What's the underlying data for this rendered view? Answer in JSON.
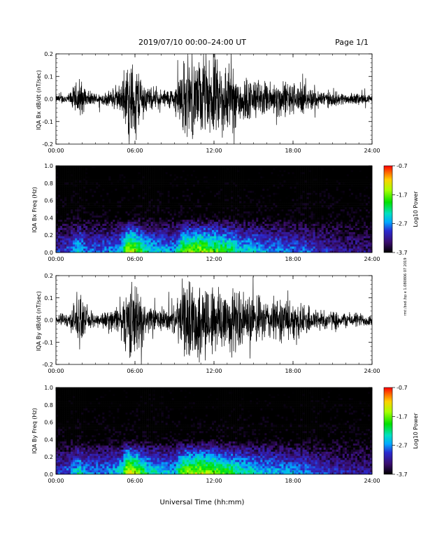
{
  "header": {
    "title": "2019/07/10  00:00–24:00 UT",
    "page": "Page 1/1"
  },
  "side_note": "rmt /bsd /bp e 1.080806 07 2019",
  "x_label": "Universal Time (hh:mm)",
  "colors": {
    "waveform": "#000000",
    "colorbar": [
      "#000000",
      "#3a0d6e",
      "#2a2ad0",
      "#00a8ff",
      "#00e0c0",
      "#00e000",
      "#a8ff00",
      "#ffd000",
      "#ff6000",
      "#ff0000"
    ]
  },
  "chart_data": [
    {
      "type": "line",
      "ylabel": "IQA Bx dB/dt (nT/sec)",
      "xlim": [
        "00:00",
        "24:00"
      ],
      "ylim": [
        -0.2,
        0.2
      ],
      "x_ticks": [
        "00:00",
        "06:00",
        "12:00",
        "18:00",
        "24:00"
      ],
      "y_ticks": [
        "-0.2",
        "-0.1",
        "0.0",
        "0.1",
        "0.2"
      ],
      "envelope": {
        "hours": [
          0,
          1,
          1.8,
          2.2,
          3,
          4,
          5,
          5.4,
          6,
          7,
          8,
          9,
          9.6,
          10,
          11,
          12,
          13,
          14,
          15,
          16,
          17,
          18,
          19,
          20,
          21,
          22,
          23,
          24
        ],
        "amplitude": [
          0.02,
          0.03,
          0.12,
          0.05,
          0.03,
          0.04,
          0.08,
          0.2,
          0.2,
          0.06,
          0.05,
          0.06,
          0.2,
          0.2,
          0.2,
          0.2,
          0.2,
          0.13,
          0.11,
          0.09,
          0.1,
          0.09,
          0.07,
          0.05,
          0.04,
          0.03,
          0.03,
          0.02
        ]
      }
    },
    {
      "type": "heatmap",
      "ylabel": "IQA Bx Freq (Hz)",
      "xlim": [
        "00:00",
        "24:00"
      ],
      "ylim": [
        0.0,
        1.0
      ],
      "x_ticks": [
        "00:00",
        "06:00",
        "12:00",
        "18:00",
        "24:00"
      ],
      "y_ticks": [
        "0.0",
        "0.2",
        "0.4",
        "0.6",
        "0.8",
        "1.0"
      ],
      "colorbar": {
        "label": "Log10 Power",
        "ticks": [
          "-0.7",
          "-1.7",
          "-2.7",
          "-3.7"
        ],
        "range": [
          -3.7,
          -0.7
        ]
      },
      "power_by_hour": {
        "hours": [
          0,
          1,
          1.8,
          2.2,
          3,
          4,
          5,
          5.4,
          6,
          7,
          8,
          9,
          9.6,
          10,
          11,
          12,
          13,
          14,
          15,
          16,
          17,
          18,
          19,
          20,
          21,
          22,
          23,
          24
        ],
        "low_freq_power": [
          -3.0,
          -2.9,
          -2.3,
          -2.7,
          -2.8,
          -2.7,
          -2.4,
          -1.2,
          -1.5,
          -2.3,
          -2.5,
          -2.6,
          -1.7,
          -1.6,
          -1.5,
          -1.7,
          -1.9,
          -2.3,
          -2.4,
          -2.6,
          -2.6,
          -2.7,
          -2.8,
          -3.0,
          -3.1,
          -3.2,
          -3.2,
          -3.3
        ]
      }
    },
    {
      "type": "line",
      "ylabel": "IQA By dB/dt (nT/sec)",
      "xlim": [
        "00:00",
        "24:00"
      ],
      "ylim": [
        -0.2,
        0.2
      ],
      "x_ticks": [
        "00:00",
        "06:00",
        "12:00",
        "18:00",
        "24:00"
      ],
      "y_ticks": [
        "-0.2",
        "-0.1",
        "0.0",
        "0.1",
        "0.2"
      ],
      "envelope": {
        "hours": [
          0,
          1,
          1.8,
          2.2,
          3,
          4,
          5,
          5.4,
          6,
          7,
          8,
          9,
          9.6,
          10,
          11,
          12,
          13,
          14,
          15,
          16,
          17,
          18,
          19,
          20,
          21,
          22,
          23,
          24
        ],
        "amplitude": [
          0.03,
          0.04,
          0.15,
          0.06,
          0.04,
          0.05,
          0.09,
          0.2,
          0.2,
          0.07,
          0.06,
          0.07,
          0.2,
          0.2,
          0.2,
          0.2,
          0.2,
          0.15,
          0.13,
          0.11,
          0.12,
          0.1,
          0.08,
          0.06,
          0.05,
          0.04,
          0.04,
          0.03
        ]
      }
    },
    {
      "type": "heatmap",
      "ylabel": "IQA By Freq (Hz)",
      "xlim": [
        "00:00",
        "24:00"
      ],
      "ylim": [
        0.0,
        1.0
      ],
      "x_ticks": [
        "00:00",
        "06:00",
        "12:00",
        "18:00",
        "24:00"
      ],
      "y_ticks": [
        "0.0",
        "0.2",
        "0.4",
        "0.6",
        "0.8",
        "1.0"
      ],
      "colorbar": {
        "label": "Log10 Power",
        "ticks": [
          "-0.7",
          "-1.7",
          "-2.7",
          "-3.7"
        ],
        "range": [
          -3.7,
          -0.7
        ]
      },
      "power_by_hour": {
        "hours": [
          0,
          1,
          1.8,
          2.2,
          3,
          4,
          5,
          5.4,
          6,
          7,
          8,
          9,
          9.6,
          10,
          11,
          12,
          13,
          14,
          15,
          16,
          17,
          18,
          19,
          20,
          21,
          22,
          23,
          24
        ],
        "low_freq_power": [
          -2.9,
          -2.8,
          -2.2,
          -2.6,
          -2.7,
          -2.6,
          -2.3,
          -1.1,
          -1.4,
          -2.2,
          -2.4,
          -2.5,
          -1.6,
          -1.5,
          -1.4,
          -1.6,
          -1.8,
          -2.2,
          -2.3,
          -2.5,
          -2.5,
          -2.6,
          -2.7,
          -2.9,
          -3.0,
          -3.1,
          -3.1,
          -3.2
        ]
      }
    }
  ]
}
